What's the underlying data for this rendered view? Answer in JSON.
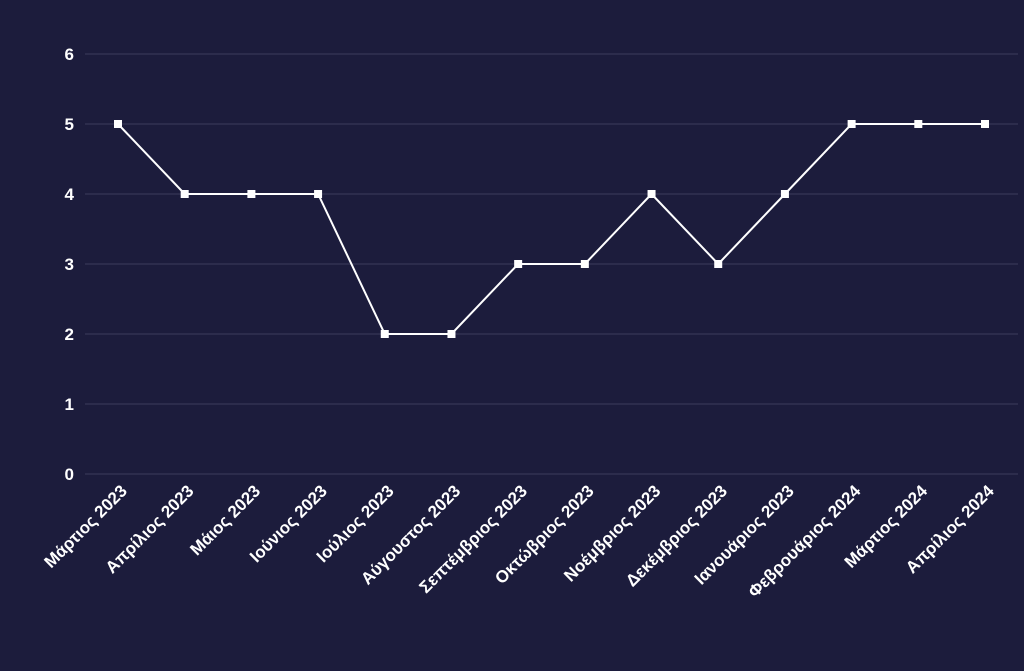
{
  "colors": {
    "background": "#1c1c3c",
    "line": "#ffffff",
    "marker": "#ffffff",
    "grid": "#3c3c5c",
    "text": "#ffffff"
  },
  "chart_data": {
    "type": "line",
    "title": "",
    "xlabel": "",
    "ylabel": "",
    "ylim": [
      0,
      6
    ],
    "yticks": [
      0,
      1,
      2,
      3,
      4,
      5,
      6
    ],
    "grid": true,
    "legend": "none",
    "marker": "square",
    "categories": [
      "Μάρτιος 2023",
      "Απρίλιος 2023",
      "Μάιος 2023",
      "Ιούνιος 2023",
      "Ιούλιος 2023",
      "Αύγουστος 2023",
      "Σεπτέμβριος 2023",
      "Οκτώβριος 2023",
      "Νοέμβριος 2023",
      "Δεκέμβριος 2023",
      "Ιανουάριος 2023",
      "Φεβρουάριος 2024",
      "Μάρτιος 2024",
      "Απρίλιος 2024"
    ],
    "series": [
      {
        "values": [
          5,
          4,
          4,
          4,
          2,
          2,
          3,
          3,
          4,
          3,
          4,
          5,
          5,
          5
        ]
      }
    ]
  }
}
